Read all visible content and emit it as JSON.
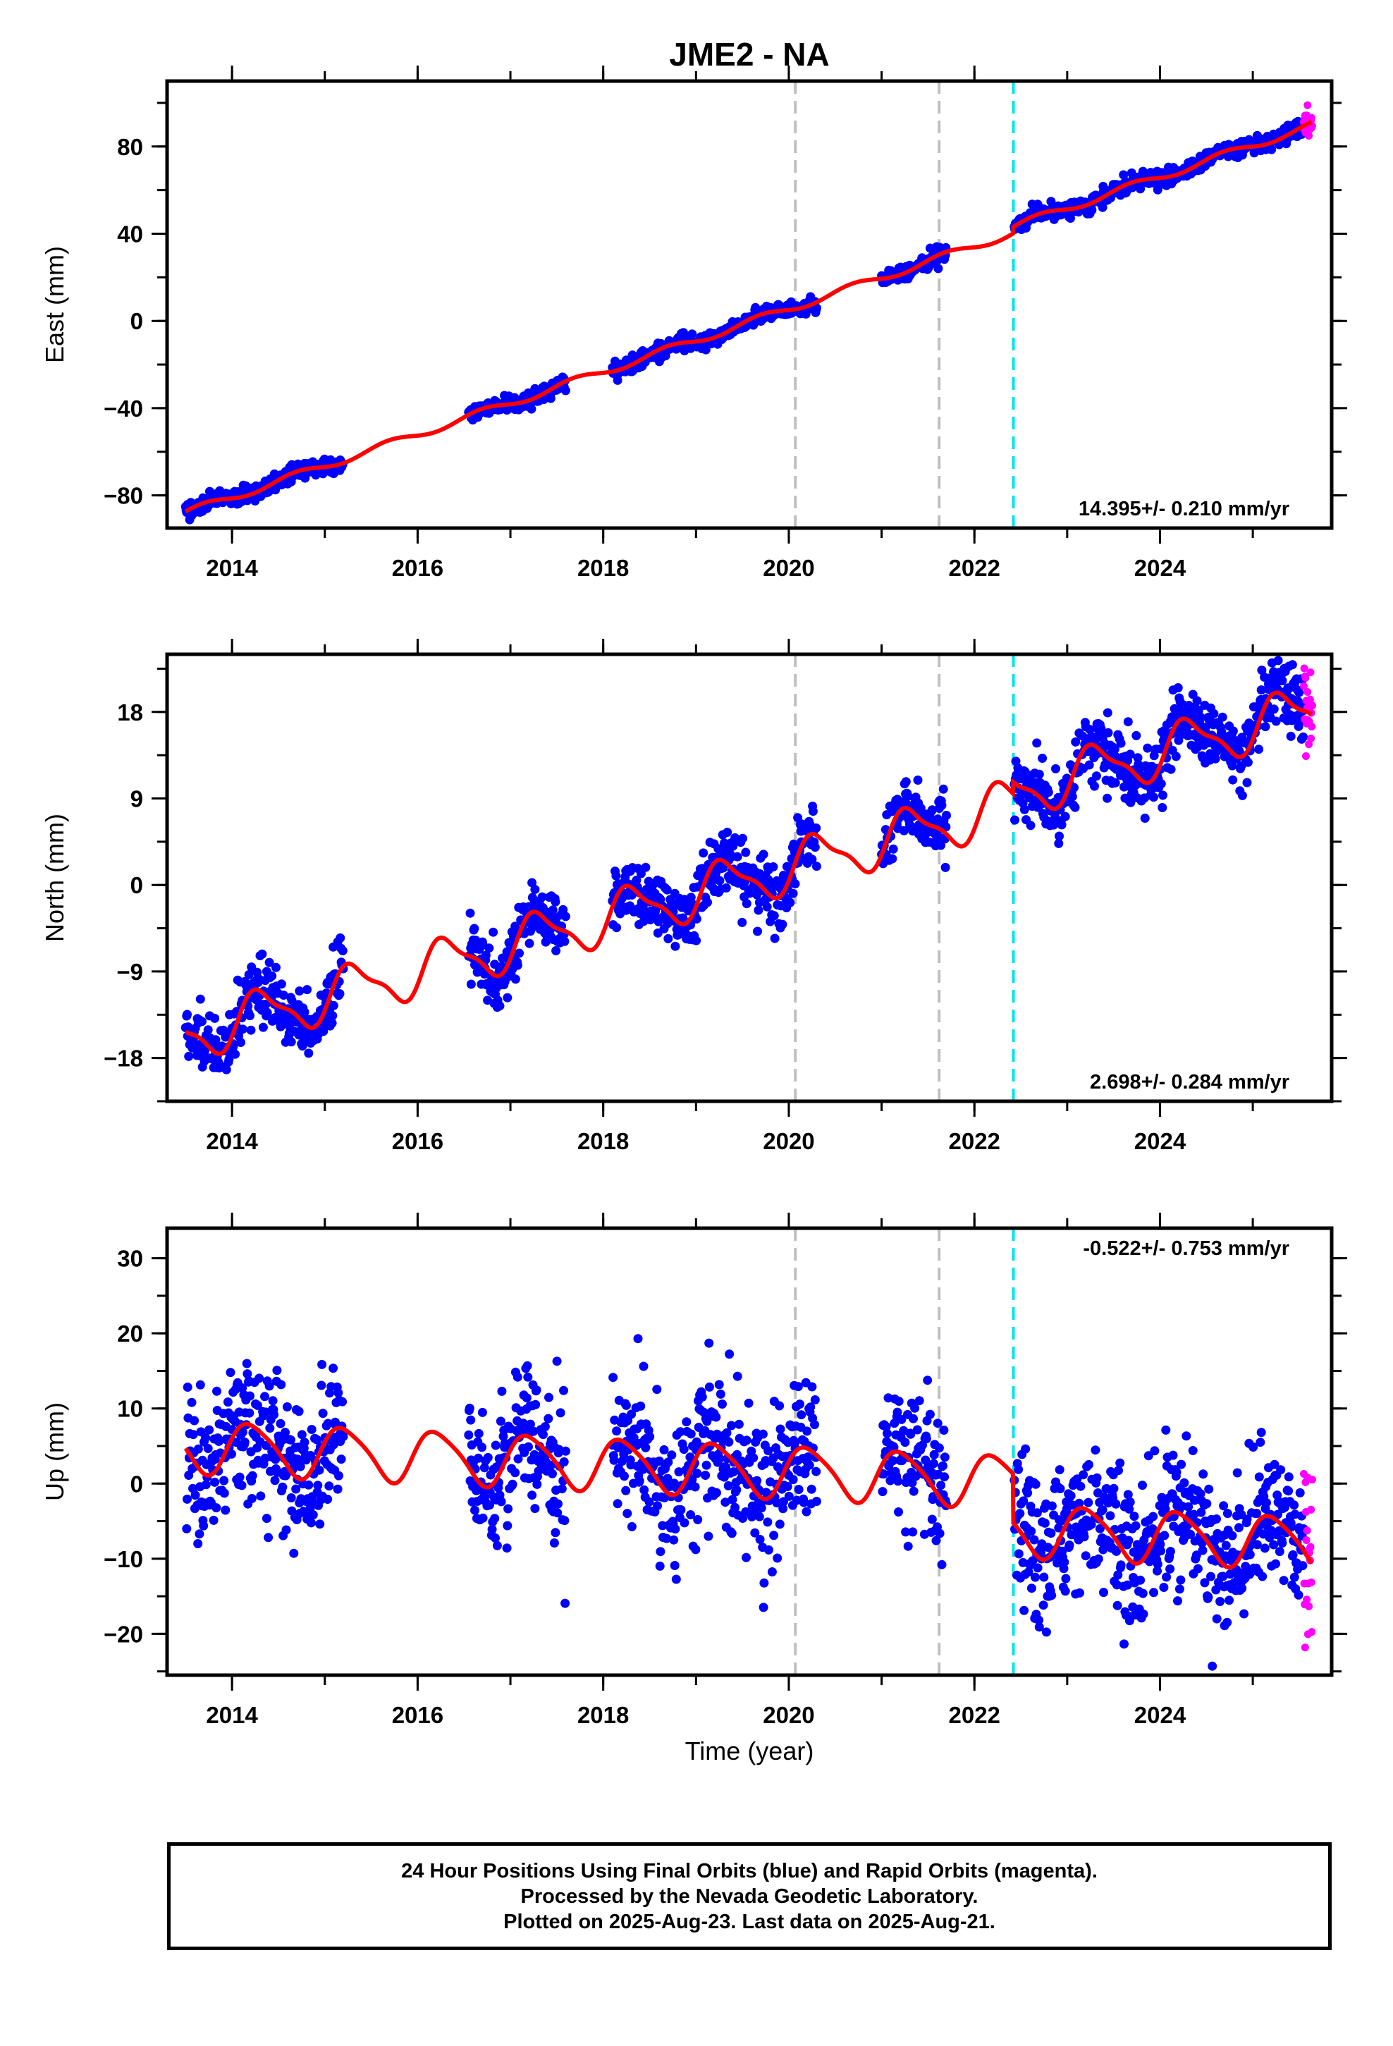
{
  "title": "JME2 - NA",
  "xlabel": "Time (year)",
  "footer": {
    "line1": "24 Hour Positions Using Final Orbits (blue) and Rapid Orbits (magenta).",
    "line2": "Processed by the Nevada Geodetic Laboratory.",
    "line3": "Plotted on 2025-Aug-23. Last data on 2025-Aug-21."
  },
  "colors": {
    "final_orbits": "#0000ff",
    "rapid_orbits": "#ff00ff",
    "model_fit": "#ff0000",
    "equipment_change": "#c0c0c0",
    "earthquake_offset": "#00e5ee"
  },
  "chart_data": [
    {
      "type": "scatter",
      "ylabel": "East (mm)",
      "rate": "14.395+/- 0.210 mm/yr",
      "xlim": [
        2013.3,
        2025.85
      ],
      "ylim": [
        -95,
        110
      ],
      "xticks": [
        2014,
        2016,
        2018,
        2020,
        2022,
        2024
      ],
      "yticks": [
        -80,
        -40,
        0,
        40,
        80
      ],
      "gray_lines": [
        2020.07,
        2021.62
      ],
      "cyan_lines": [
        2022.42
      ],
      "data_segments": [
        [
          2013.5,
          2015.2
        ],
        [
          2016.55,
          2017.6
        ],
        [
          2018.1,
          2020.3
        ],
        [
          2021.0,
          2021.7
        ],
        [
          2022.43,
          2025.55
        ]
      ],
      "rapid_start": 2025.55,
      "data_end": 2025.64,
      "model": {
        "a": -88,
        "rate": 14.395,
        "t0": 2013.5,
        "offsets": [
          [
            2022.42,
            3.0
          ]
        ],
        "amp_c": 0.6,
        "amp_s": 1.6,
        "amp_c2": 0.0,
        "amp_s2": 0.0
      },
      "noise": 1.7
    },
    {
      "type": "scatter",
      "ylabel": "North (mm)",
      "rate": "2.698+/- 0.284 mm/yr",
      "xlim": [
        2013.3,
        2025.85
      ],
      "ylim": [
        -22.5,
        24
      ],
      "xticks": [
        2014,
        2016,
        2018,
        2020,
        2022,
        2024
      ],
      "yticks": [
        -18,
        -9,
        0,
        9,
        18
      ],
      "gray_lines": [
        2020.07,
        2021.62
      ],
      "cyan_lines": [
        2022.42
      ],
      "data_segments": [
        [
          2013.5,
          2015.2
        ],
        [
          2016.55,
          2017.6
        ],
        [
          2018.1,
          2020.3
        ],
        [
          2021.0,
          2021.7
        ],
        [
          2022.43,
          2025.55
        ]
      ],
      "rapid_start": 2025.55,
      "data_end": 2025.64,
      "model": {
        "a": -15.7,
        "rate": 2.698,
        "t0": 2013.5,
        "offsets": [
          [
            2022.42,
            1.2
          ]
        ],
        "amp_c": 0.9,
        "amp_s": -2.3,
        "amp_c2": -0.5,
        "amp_s2": 0.6
      },
      "noise": 1.6
    },
    {
      "type": "scatter",
      "ylabel": "Up (mm)",
      "rate": "-0.522+/- 0.753 mm/yr",
      "xlim": [
        2013.3,
        2025.85
      ],
      "ylim": [
        -25.5,
        34
      ],
      "xticks": [
        2014,
        2016,
        2018,
        2020,
        2022,
        2024
      ],
      "yticks": [
        -20,
        -10,
        0,
        10,
        20,
        30
      ],
      "gray_lines": [
        2020.07,
        2021.62
      ],
      "cyan_lines": [
        2022.42
      ],
      "data_segments": [
        [
          2013.5,
          2015.2
        ],
        [
          2016.55,
          2017.6
        ],
        [
          2018.1,
          2020.3
        ],
        [
          2021.0,
          2021.7
        ],
        [
          2022.43,
          2025.55
        ]
      ],
      "rapid_start": 2025.55,
      "data_end": 2025.64,
      "model": {
        "a": 5.0,
        "rate": -0.522,
        "t0": 2013.5,
        "offsets": [
          [
            2022.42,
            -6.5
          ]
        ],
        "amp_c": -0.8,
        "amp_s": -3.3,
        "amp_c2": 0.5,
        "amp_s2": 0.3
      },
      "noise": 4.6
    }
  ]
}
